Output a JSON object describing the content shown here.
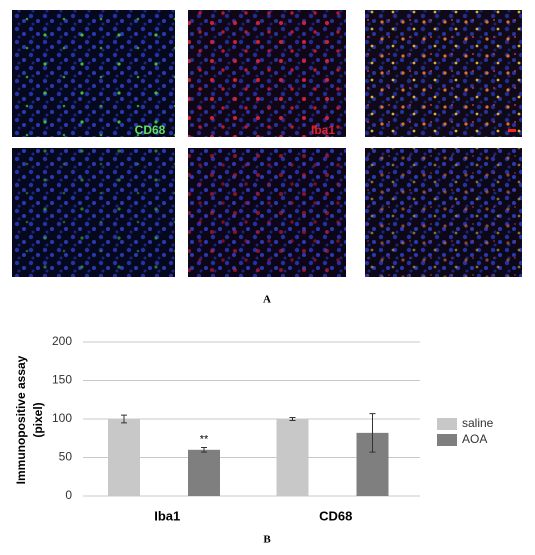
{
  "panel_a": {
    "label": "A",
    "image_labels": [
      "CD68",
      "Iba1"
    ]
  },
  "chart_data": {
    "type": "bar",
    "panel_label": "B",
    "ylabel": [
      "Immunopositive assay",
      "(pixel)"
    ],
    "categories": [
      "Iba1",
      "CD68"
    ],
    "series": [
      {
        "name": "saline",
        "color": "#c8c8c8",
        "values": [
          100,
          100
        ],
        "errors": [
          5,
          2
        ]
      },
      {
        "name": "AOA",
        "color": "#7f7f7f",
        "values": [
          60,
          82
        ],
        "errors": [
          3,
          25
        ]
      }
    ],
    "annotations": [
      {
        "text": "**",
        "series": 1,
        "category": 0
      }
    ],
    "ylim": [
      0,
      200
    ],
    "yticks": [
      0,
      50,
      100,
      150,
      200
    ],
    "grid": true,
    "legend": "right"
  }
}
